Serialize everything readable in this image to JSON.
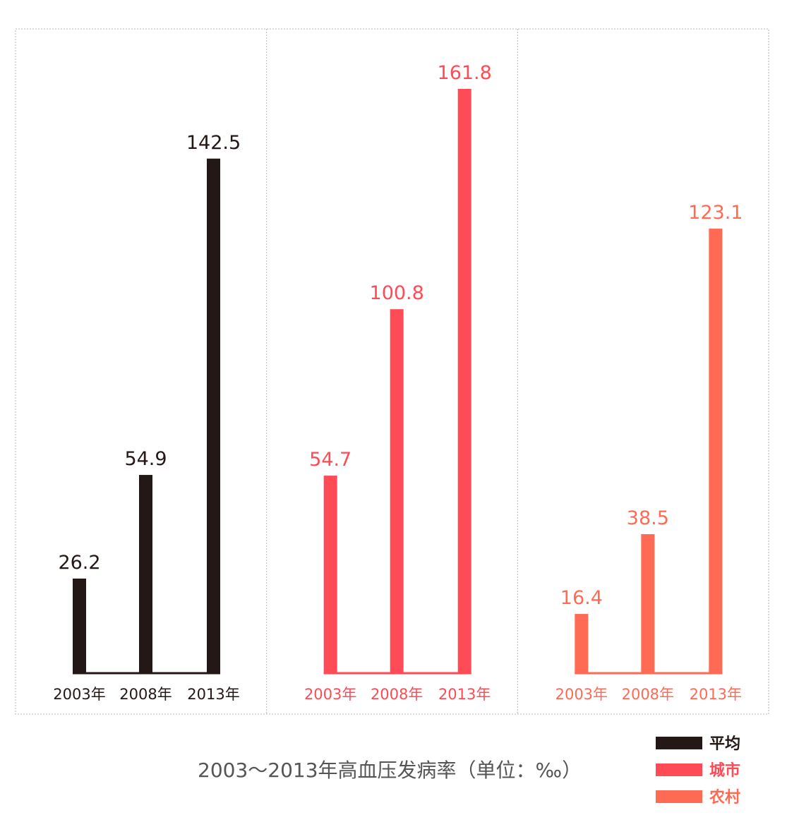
{
  "chart_data": {
    "type": "bar",
    "title": "2003～2013年高血压发病率（单位：‰）",
    "categories": [
      "2003年",
      "2008年",
      "2013年"
    ],
    "ylim": [
      0,
      161.8
    ],
    "grid": false,
    "legend_position": "bottom-right",
    "series": [
      {
        "name": "平均",
        "color": "#231815",
        "values": [
          26.2,
          54.9,
          142.5
        ],
        "labels": [
          "26.2",
          "54.9",
          "142.5"
        ]
      },
      {
        "name": "城市",
        "color": "#ff4b56",
        "values": [
          54.7,
          100.8,
          161.8
        ],
        "labels": [
          "54.7",
          "100.8",
          "161.8"
        ]
      },
      {
        "name": "农村",
        "color": "#ff6a55",
        "values": [
          16.4,
          38.5,
          123.1
        ],
        "labels": [
          "16.4",
          "38.5",
          "123.1"
        ]
      }
    ]
  }
}
